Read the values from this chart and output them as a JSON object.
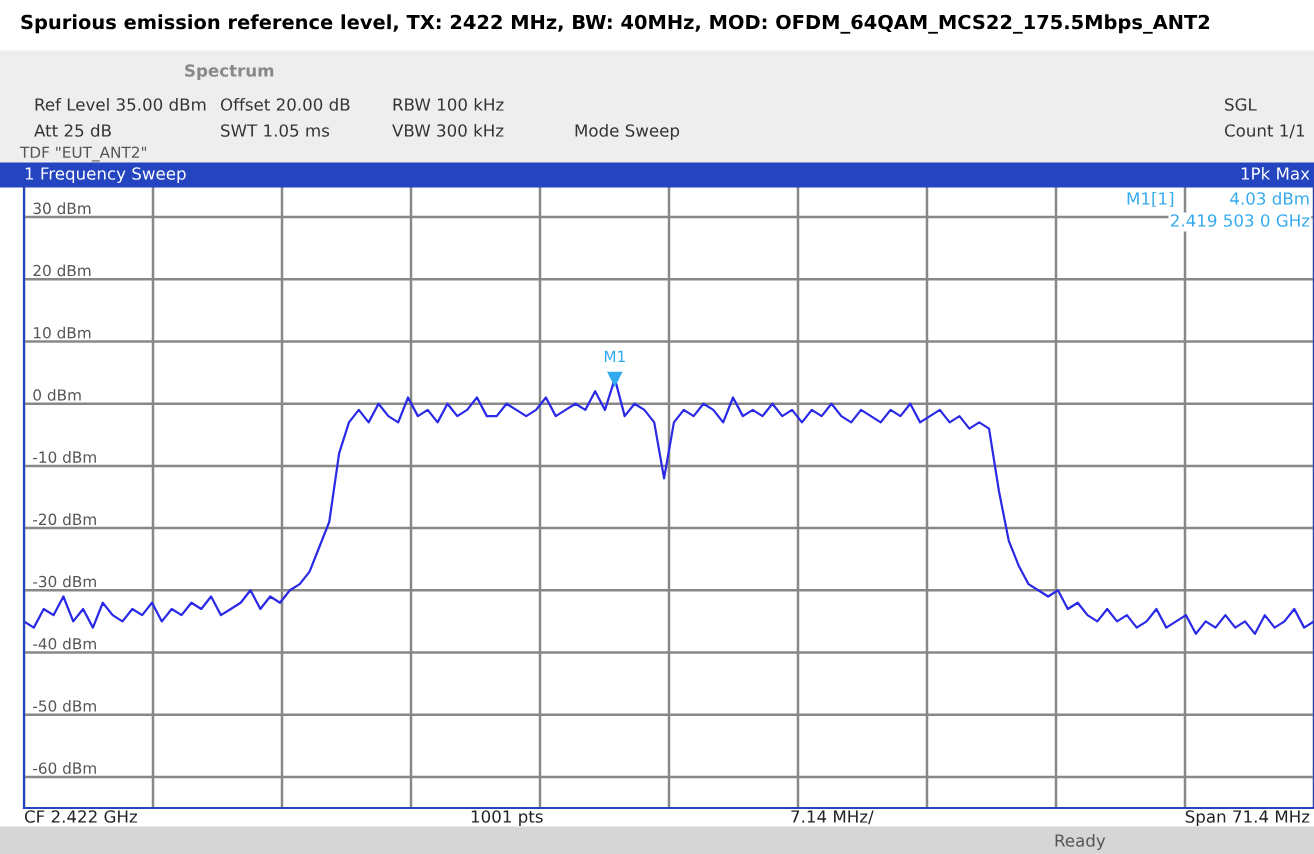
{
  "chart_data": {
    "type": "line",
    "title": "Spurious emission reference level, TX: 2422 MHz, BW: 40MHz, MOD: OFDM_64QAM_MCS22_175.5Mbps_ANT2",
    "categories": [
      null,
      null,
      null,
      null,
      null,
      null,
      null,
      null,
      null,
      null,
      null,
      null,
      null,
      null,
      null,
      null,
      null,
      null,
      null,
      null,
      null,
      null,
      null,
      null,
      null,
      null,
      null,
      null,
      null,
      null,
      null,
      null,
      null,
      null,
      null,
      null,
      null,
      null,
      null,
      null,
      null,
      null,
      null,
      null,
      null,
      null,
      null,
      null,
      null,
      null,
      null,
      null,
      null,
      null,
      null,
      null,
      null,
      null,
      null,
      null,
      null,
      null,
      null,
      null,
      null,
      null,
      null,
      null,
      null,
      null,
      null,
      null,
      null,
      null,
      null,
      null,
      null,
      null,
      null,
      null,
      null,
      null,
      null,
      null,
      null,
      null,
      null,
      null,
      null,
      null,
      null,
      null,
      null,
      null,
      null,
      null,
      null,
      null,
      null,
      null,
      null,
      null,
      null,
      null,
      null,
      null,
      null,
      null,
      null,
      null,
      null,
      null,
      null,
      null,
      null,
      null,
      null,
      null,
      null,
      null,
      null,
      null,
      null,
      null,
      null,
      null,
      null,
      null,
      null,
      null,
      null,
      null
    ],
    "series": [
      {
        "color": "#2a2ae6",
        "values": [
          -35,
          -36,
          -33,
          -34,
          -31,
          -35,
          -33,
          -36,
          -32,
          -34,
          -35,
          -33,
          -34,
          -32,
          -35,
          -33,
          -34,
          -32,
          -33,
          -31,
          -34,
          -33,
          -32,
          -30,
          -33,
          -31,
          -32,
          -30,
          -29,
          -27,
          -23,
          -19,
          -8,
          -3,
          -1,
          -3,
          0,
          -2,
          -3,
          1,
          -2,
          -1,
          -3,
          0,
          -2,
          -1,
          1,
          -2,
          -2,
          0,
          -1,
          -2,
          -1,
          1,
          -2,
          -1,
          0,
          -1,
          2,
          -1,
          4.03,
          -2,
          0,
          -1,
          -3,
          -12,
          -3,
          -1,
          -2,
          0,
          -1,
          -3,
          1,
          -2,
          -1,
          -2,
          0,
          -2,
          -1,
          -3,
          -1,
          -2,
          0,
          -2,
          -3,
          -1,
          -2,
          -3,
          -1,
          -2,
          0,
          -3,
          -2,
          -1,
          -3,
          -2,
          -4,
          -3,
          -4,
          -14,
          -22,
          -26,
          -29,
          -30,
          -31,
          -30,
          -33,
          -32,
          -34,
          -35,
          -33,
          -35,
          -34,
          -36,
          -35,
          -33,
          -36,
          -35,
          -34,
          -37,
          -35,
          -36,
          -34,
          -36,
          -35,
          -37,
          -34,
          -36,
          -35,
          -33,
          -36,
          -35
        ]
      }
    ],
    "ylim": [
      -65,
      35
    ],
    "yticks": [
      {
        "value": 30,
        "label": "30 dBm"
      },
      {
        "value": 20,
        "label": "20 dBm"
      },
      {
        "value": 10,
        "label": "10 dBm"
      },
      {
        "value": 0,
        "label": "0 dBm"
      },
      {
        "value": -10,
        "label": "-10 dBm"
      },
      {
        "value": -20,
        "label": "-20 dBm"
      },
      {
        "value": -30,
        "label": "-30 dBm"
      },
      {
        "value": -40,
        "label": "-40 dBm"
      },
      {
        "value": -50,
        "label": "-50 dBm"
      },
      {
        "value": -60,
        "label": "-60 dBm"
      }
    ],
    "grid": true,
    "annotations": [
      "Spectrum",
      "Ref Level 35.00 dBm",
      "Offset 20.00 dB",
      "RBW 100 kHz",
      "Att 25 dB",
      "SWT 1.05 ms",
      "VBW 300 kHz",
      "Mode Sweep",
      "TDF \"EUT_ANT2\"",
      "SGL",
      "Count 1/1",
      "1 Frequency Sweep",
      "1Pk Max",
      "M1[1]",
      "4.03 dBm",
      "2.419 503 0 GHz",
      "CF 2.422 GHz",
      "1001 pts",
      "7.14 MHz/",
      "Span 71.4 MHz",
      "Ready",
      {
        "text": "M1",
        "y": 4.03
      }
    ]
  }
}
